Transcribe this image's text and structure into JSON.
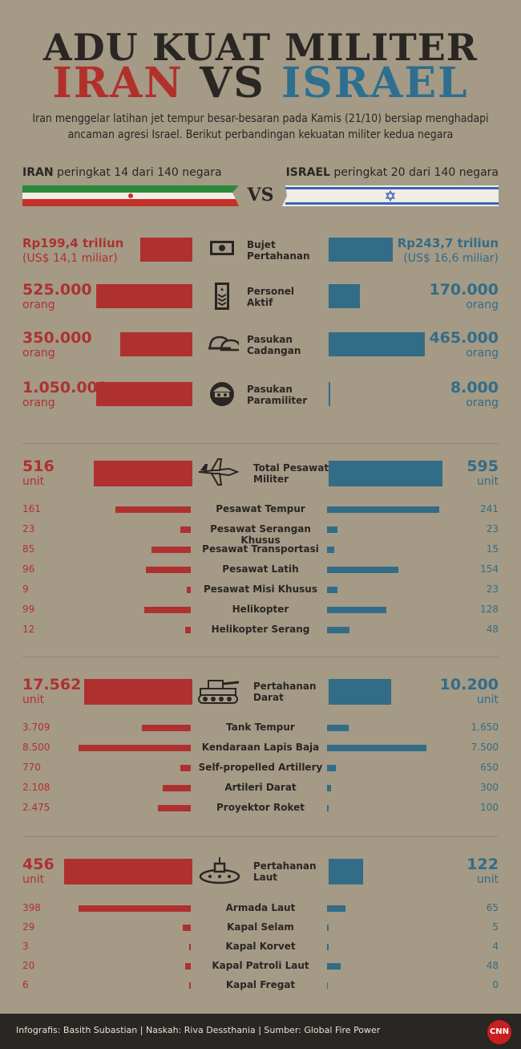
{
  "title_line1": "ADU KUAT MILITER",
  "title_iran": "IRAN",
  "title_vs": "VS",
  "title_israel": "ISRAEL",
  "intro": "Iran menggelar latihan jet tempur besar-besaran pada Kamis (21/10) bersiap menghadapi ancaman agresi Israel. Berikut perbandingan kekuatan militer kedua negara",
  "iran_rank_name": "IRAN",
  "iran_rank_text": "peringkat 14 dari 140 negara",
  "israel_rank_name": "ISRAEL",
  "israel_rank_text": "peringkat 20 dari 140 negara",
  "vs": "VS",
  "colors": {
    "iran": "#ae3130",
    "israel": "#336c86",
    "background": "#a49a86",
    "text": "#2a2623"
  },
  "main": [
    {
      "label": "Bujet Pertahanan",
      "icon": "money-icon",
      "iran": "Rp199,4 triliun",
      "iran_sub": "(US$ 14,1 miliar)",
      "israel": "Rp243,7 triliun",
      "israel_sub": "(US$ 16,6 miliar)",
      "iran_val": 199.4,
      "israel_val": 243.7
    },
    {
      "label": "Personel Aktif",
      "icon": "rank-badge-icon",
      "iran": "525.000",
      "iran_sub": "orang",
      "israel": "170.000",
      "israel_sub": "orang",
      "iran_val": 525000,
      "israel_val": 170000
    },
    {
      "label": "Pasukan Cadangan",
      "icon": "helmet-icon",
      "iran": "350.000",
      "iran_sub": "orang",
      "israel": "465.000",
      "israel_sub": "orang",
      "iran_val": 350000,
      "israel_val": 465000
    },
    {
      "label": "Pasukan Paramiliter",
      "icon": "soldier-icon",
      "iran": "1.050.000",
      "iran_sub": "orang",
      "israel": "8.000",
      "israel_sub": "orang",
      "iran_val": 1050000,
      "israel_val": 8000
    }
  ],
  "air": {
    "label": "Total Pesawat Militer",
    "icon": "fighter-jet-icon",
    "iran": "516",
    "israel": "595",
    "unit": "unit",
    "iran_val": 516,
    "israel_val": 595,
    "items": [
      {
        "label": "Pesawat Tempur",
        "iran": "161",
        "israel": "241",
        "iran_val": 161,
        "israel_val": 241
      },
      {
        "label": "Pesawat Serangan Khusus",
        "iran": "23",
        "israel": "23",
        "iran_val": 23,
        "israel_val": 23
      },
      {
        "label": "Pesawat Transportasi",
        "iran": "85",
        "israel": "15",
        "iran_val": 85,
        "israel_val": 15
      },
      {
        "label": "Pesawat Latih",
        "iran": "96",
        "israel": "154",
        "iran_val": 96,
        "israel_val": 154
      },
      {
        "label": "Pesawat Misi Khusus",
        "iran": "9",
        "israel": "23",
        "iran_val": 9,
        "israel_val": 23
      },
      {
        "label": "Helikopter",
        "iran": "99",
        "israel": "128",
        "iran_val": 99,
        "israel_val": 128
      },
      {
        "label": "Helikopter Serang",
        "iran": "12",
        "israel": "48",
        "iran_val": 12,
        "israel_val": 48
      }
    ]
  },
  "land": {
    "label": "Pertahanan Darat",
    "icon": "tank-icon",
    "iran": "17.562",
    "israel": "10.200",
    "unit": "unit",
    "iran_val": 17562,
    "israel_val": 10200,
    "items": [
      {
        "label": "Tank Tempur",
        "iran": "3.709",
        "israel": "1.650",
        "iran_val": 3709,
        "israel_val": 1650
      },
      {
        "label": "Kendaraan Lapis Baja",
        "iran": "8.500",
        "israel": "7.500",
        "iran_val": 8500,
        "israel_val": 7500
      },
      {
        "label": "Self-propelled Artillery",
        "iran": "770",
        "israel": "650",
        "iran_val": 770,
        "israel_val": 650
      },
      {
        "label": "Artileri Darat",
        "iran": "2.108",
        "israel": "300",
        "iran_val": 2108,
        "israel_val": 300
      },
      {
        "label": "Proyektor Roket",
        "iran": "2.475",
        "israel": "100",
        "iran_val": 2475,
        "israel_val": 100
      }
    ]
  },
  "sea": {
    "label": "Pertahanan Laut",
    "icon": "submarine-icon",
    "iran": "456",
    "israel": "122",
    "unit": "unit",
    "iran_val": 456,
    "israel_val": 122,
    "items": [
      {
        "label": "Armada Laut",
        "iran": "398",
        "israel": "65",
        "iran_val": 398,
        "israel_val": 65
      },
      {
        "label": "Kapal Selam",
        "iran": "29",
        "israel": "5",
        "iran_val": 29,
        "israel_val": 5
      },
      {
        "label": "Kapal Korvet",
        "iran": "3",
        "israel": "4",
        "iran_val": 3,
        "israel_val": 4
      },
      {
        "label": "Kapal Patroli Laut",
        "iran": "20",
        "israel": "48",
        "iran_val": 20,
        "israel_val": 48
      },
      {
        "label": "Kapal Fregat",
        "iran": "6",
        "israel": "0",
        "iran_val": 6,
        "israel_val": 0
      }
    ]
  },
  "footer": "Infografis: Basith Subastian | Naskah: Riva Dessthania | Sumber: Global Fire Power",
  "logo": "CNN"
}
